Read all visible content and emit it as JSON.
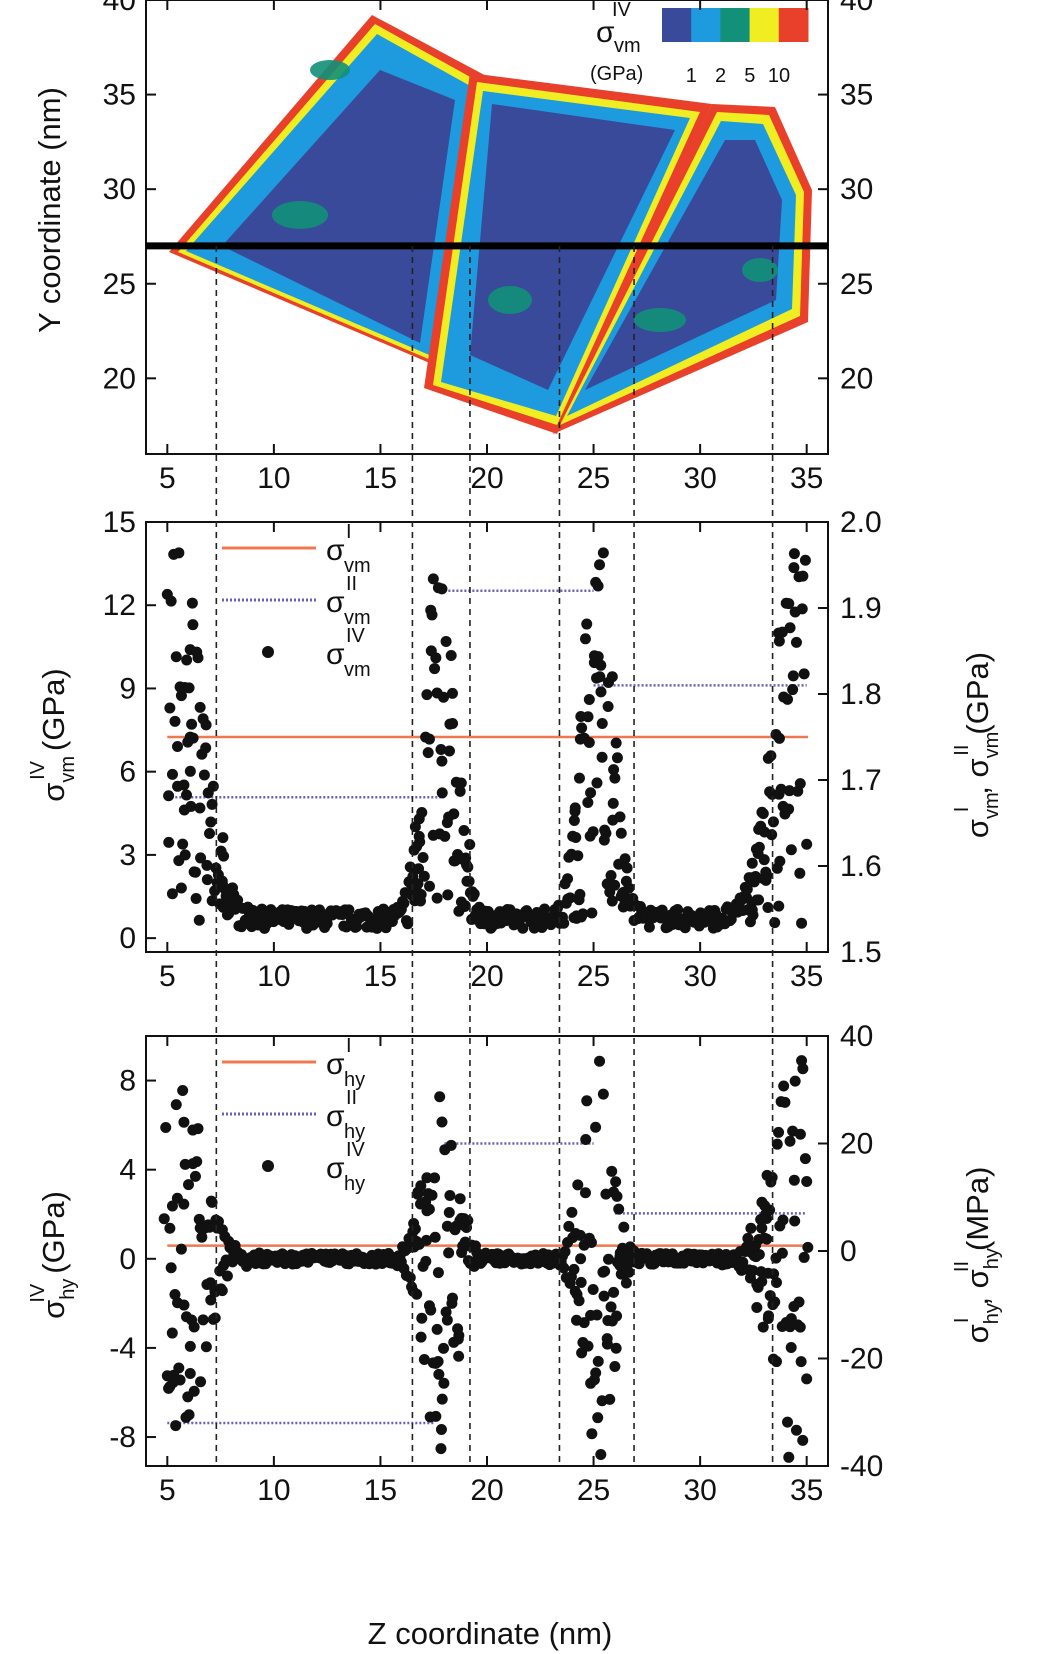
{
  "chart_data": [
    {
      "type": "heatmap",
      "xlabel": "",
      "ylabel": "Y coordinate (nm)",
      "xlim": [
        4,
        36
      ],
      "ylim": [
        16,
        40
      ],
      "x_ticks": [
        "5",
        "10",
        "15",
        "20",
        "25",
        "30",
        "35"
      ],
      "y_ticks": [
        "20",
        "25",
        "30",
        "35",
        "40"
      ],
      "y_ticks_right": [
        "20",
        "25",
        "30",
        "35",
        "40"
      ],
      "horizontal_line_y": 27,
      "colorbar": {
        "symbol": "σ",
        "subscript": "vm",
        "superscript": "IV",
        "unit": "(GPa)",
        "tick_labels": [
          "1",
          "2",
          "5",
          "10"
        ],
        "colors": [
          "#3a4a9a",
          "#1e9adf",
          "#129078",
          "#f0ee22",
          "#e8402a"
        ]
      },
      "grains": [
        {
          "name": "",
          "outline": [
            [
              5,
              26.3
            ],
            [
              14,
              39.6
            ],
            [
              18.5,
              37
            ],
            [
              17.5,
              21.4
            ],
            [
              5,
              26.3
            ]
          ]
        },
        {
          "name": "",
          "outline": [
            [
              17.6,
              21.2
            ],
            [
              18.5,
              36.8
            ],
            [
              27.5,
              35.5
            ],
            [
              23.3,
              17.6
            ],
            [
              17.6,
              21.2
            ]
          ]
        },
        {
          "name": "",
          "outline": [
            [
              23.3,
              17.6
            ],
            [
              27.5,
              35.4
            ],
            [
              32,
              34.8
            ],
            [
              35,
              30.3
            ],
            [
              34.8,
              23
            ],
            [
              23.3,
              17.6
            ]
          ]
        }
      ]
    },
    {
      "type": "scatter",
      "xlabel": "",
      "ylabel_symbol": "σ",
      "ylabel_sub": "vm",
      "ylabel_sup": "IV",
      "ylabel_unit": "(GPa)",
      "ylabel_right_text": "σ",
      "ylabel_right_sub1": "vm",
      "ylabel_right_sup1": "I",
      "ylabel_right_sep": ", σ",
      "ylabel_right_sub2": "vm",
      "ylabel_right_sup2": "II",
      "ylabel_right_unit": "(GPa)",
      "xlim": [
        4,
        36
      ],
      "ylim": [
        -0.5,
        15
      ],
      "ylim_right": [
        1.5,
        2.0
      ],
      "x_ticks": [
        "5",
        "10",
        "15",
        "20",
        "25",
        "30",
        "35"
      ],
      "y_ticks": [
        "0",
        "3",
        "6",
        "9",
        "12",
        "15"
      ],
      "y_ticks_right": [
        "1.5",
        "1.6",
        "1.7",
        "1.8",
        "1.9",
        "2.0"
      ],
      "legend": [
        {
          "symbol": "σ",
          "sub": "vm",
          "sup": "I",
          "style": "solid",
          "color": "#f07850"
        },
        {
          "symbol": "σ",
          "sub": "vm",
          "sup": "II",
          "style": "dotted",
          "color": "#6b5fb8"
        },
        {
          "symbol": "σ",
          "sub": "vm",
          "sup": "IV",
          "style": "dot",
          "color": "#111111"
        }
      ],
      "sigma_I_right": 1.75,
      "sigma_II_segments_right": [
        {
          "x": [
            5,
            18
          ],
          "y": 1.68
        },
        {
          "x": [
            18,
            25
          ],
          "y": 1.92
        },
        {
          "x": [
            25,
            35
          ],
          "y": 1.81
        }
      ],
      "peaks": [
        {
          "center": 5.5,
          "height": 14.5
        },
        {
          "center": 17.8,
          "height": 13.8
        },
        {
          "center": 25.2,
          "height": 14.5
        },
        {
          "center": 34.6,
          "height": 14.2
        }
      ],
      "baseline": 0.7
    },
    {
      "type": "scatter",
      "xlabel": "Z coordinate (nm)",
      "ylabel_symbol": "σ",
      "ylabel_sub": "hy",
      "ylabel_sup": "IV",
      "ylabel_unit": "(GPa)",
      "ylabel_right_text": "σ",
      "ylabel_right_sub1": "hy",
      "ylabel_right_sup1": "I",
      "ylabel_right_sep": ", σ",
      "ylabel_right_sub2": "hy",
      "ylabel_right_sup2": "II",
      "ylabel_right_unit": "(MPa)",
      "xlim": [
        4,
        36
      ],
      "ylim": [
        -9.3,
        10
      ],
      "ylim_right": [
        -40,
        40
      ],
      "x_ticks": [
        "5",
        "10",
        "15",
        "20",
        "25",
        "30",
        "35"
      ],
      "y_ticks": [
        "-8",
        "-4",
        "0",
        "4",
        "8"
      ],
      "y_ticks_right": [
        "-40",
        "-20",
        "0",
        "20",
        "40"
      ],
      "legend": [
        {
          "symbol": "σ",
          "sub": "hy",
          "sup": "I",
          "style": "solid",
          "color": "#f07850"
        },
        {
          "symbol": "σ",
          "sub": "hy",
          "sup": "II",
          "style": "dotted",
          "color": "#6b5fb8"
        },
        {
          "symbol": "σ",
          "sub": "hy",
          "sup": "IV",
          "style": "dot",
          "color": "#111111"
        }
      ],
      "sigma_I_right": 1,
      "sigma_II_segments_right": [
        {
          "x": [
            5,
            17.5
          ],
          "y": -32
        },
        {
          "x": [
            18,
            25
          ],
          "y": 20
        },
        {
          "x": [
            26,
            35
          ],
          "y": 7
        }
      ],
      "peaks": [
        {
          "center": 5.5,
          "height": 9
        },
        {
          "center": 17.8,
          "height": 9
        },
        {
          "center": 25.2,
          "height": 9.3
        },
        {
          "center": 34.6,
          "height": 9.8
        }
      ],
      "baseline": 0.0
    }
  ],
  "boundaries_x": [
    7.3,
    16.5,
    19.2,
    23.4,
    26.9,
    33.4
  ]
}
